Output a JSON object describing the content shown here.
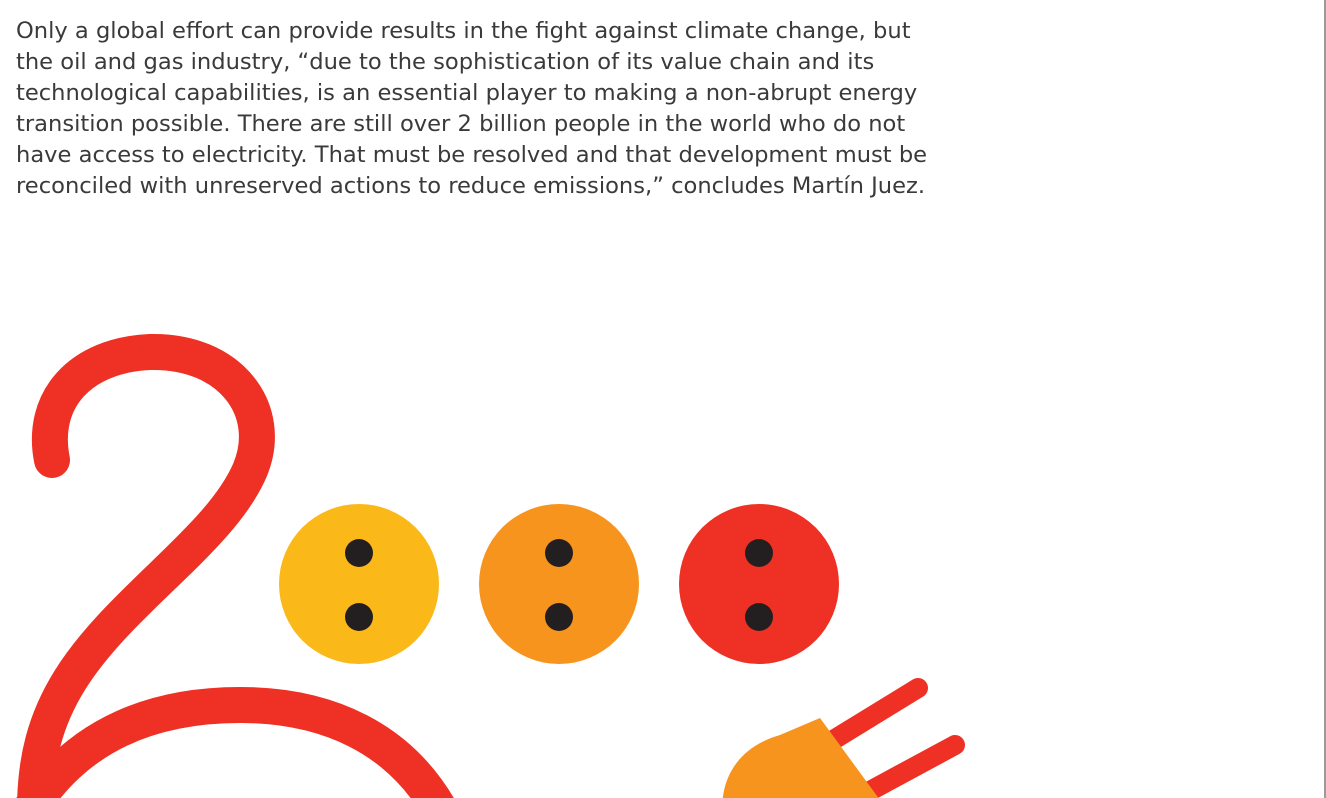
{
  "paragraph": {
    "lines": [
      "Only a global effort can provide results in the fight against climate change, but",
      "the oil and gas industry, “due to the sophistication of its value chain and its",
      "technological capabilities, is an essential player to making a non-abrupt energy",
      "transition possible. There are still over 2 billion people in the world who do not",
      "have access to electricity. That must be resolved and that development must be",
      "reconciled with unreserved actions to reduce emissions,” concludes Martín Juez."
    ]
  }
}
